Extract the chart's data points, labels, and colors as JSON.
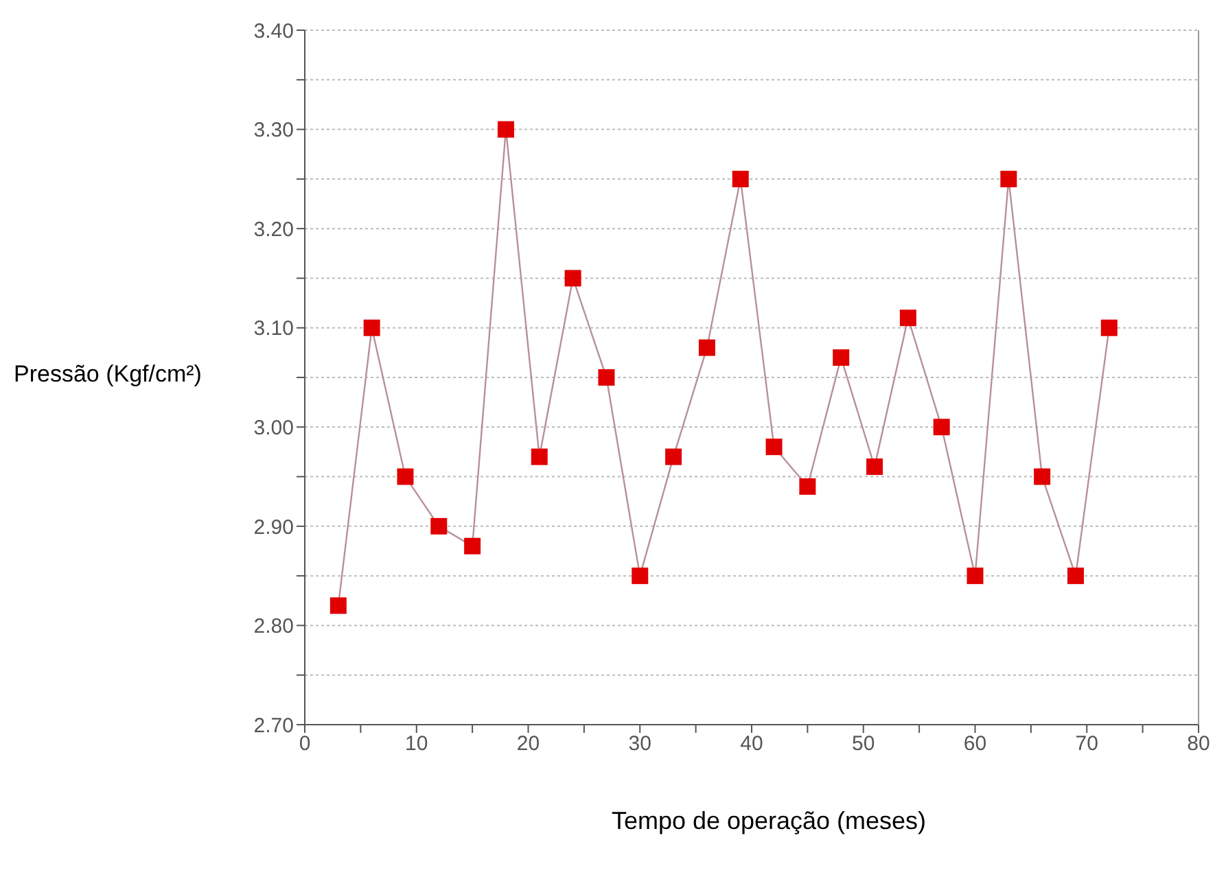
{
  "chart_data": {
    "type": "line",
    "xlabel": "Tempo de operação (meses)",
    "ylabel": "Pressão (Kgf/cm²)",
    "x": [
      3,
      6,
      9,
      12,
      15,
      18,
      21,
      24,
      27,
      30,
      33,
      36,
      39,
      42,
      45,
      48,
      51,
      54,
      57,
      60,
      63,
      66,
      69,
      72
    ],
    "series": [
      {
        "color": "#e00000",
        "values": [
          2.82,
          3.1,
          2.95,
          2.9,
          2.88,
          3.3,
          2.97,
          3.15,
          3.05,
          2.85,
          2.97,
          3.08,
          3.25,
          2.98,
          2.94,
          3.07,
          2.96,
          3.11,
          3.0,
          2.85,
          3.25,
          2.95,
          2.85,
          3.1
        ]
      }
    ],
    "xlim": [
      0,
      80
    ],
    "xticks": [
      0,
      {
        "value": 5,
        "label": null
      },
      10,
      {
        "value": 15,
        "label": null
      },
      20,
      {
        "value": 25,
        "label": null
      },
      30,
      {
        "value": 35,
        "label": null
      },
      40,
      {
        "value": 45,
        "label": null
      },
      50,
      {
        "value": 55,
        "label": null
      },
      60,
      {
        "value": 65,
        "label": null
      },
      70,
      {
        "value": 75,
        "label": null
      },
      80
    ],
    "ylim": [
      2.7,
      3.4
    ],
    "yticks": [
      {
        "value": 2.7,
        "label": "2.70"
      },
      {
        "value": 2.75,
        "label": null
      },
      {
        "value": 2.8,
        "label": "2.80"
      },
      {
        "value": 2.85,
        "label": null
      },
      {
        "value": 2.9,
        "label": "2.90"
      },
      {
        "value": 2.95,
        "label": null
      },
      {
        "value": 3.0,
        "label": "3.00"
      },
      {
        "value": 3.05,
        "label": null
      },
      {
        "value": 3.1,
        "label": "3.10"
      },
      {
        "value": 3.15,
        "label": null
      },
      {
        "value": 3.2,
        "label": "3.20"
      },
      {
        "value": 3.25,
        "label": null
      },
      {
        "value": 3.3,
        "label": "3.30"
      },
      {
        "value": 3.35,
        "label": null
      },
      {
        "value": 3.4,
        "label": "3.40"
      }
    ],
    "grid": "y",
    "legend": false,
    "marker": "square",
    "line_style": "solid"
  }
}
